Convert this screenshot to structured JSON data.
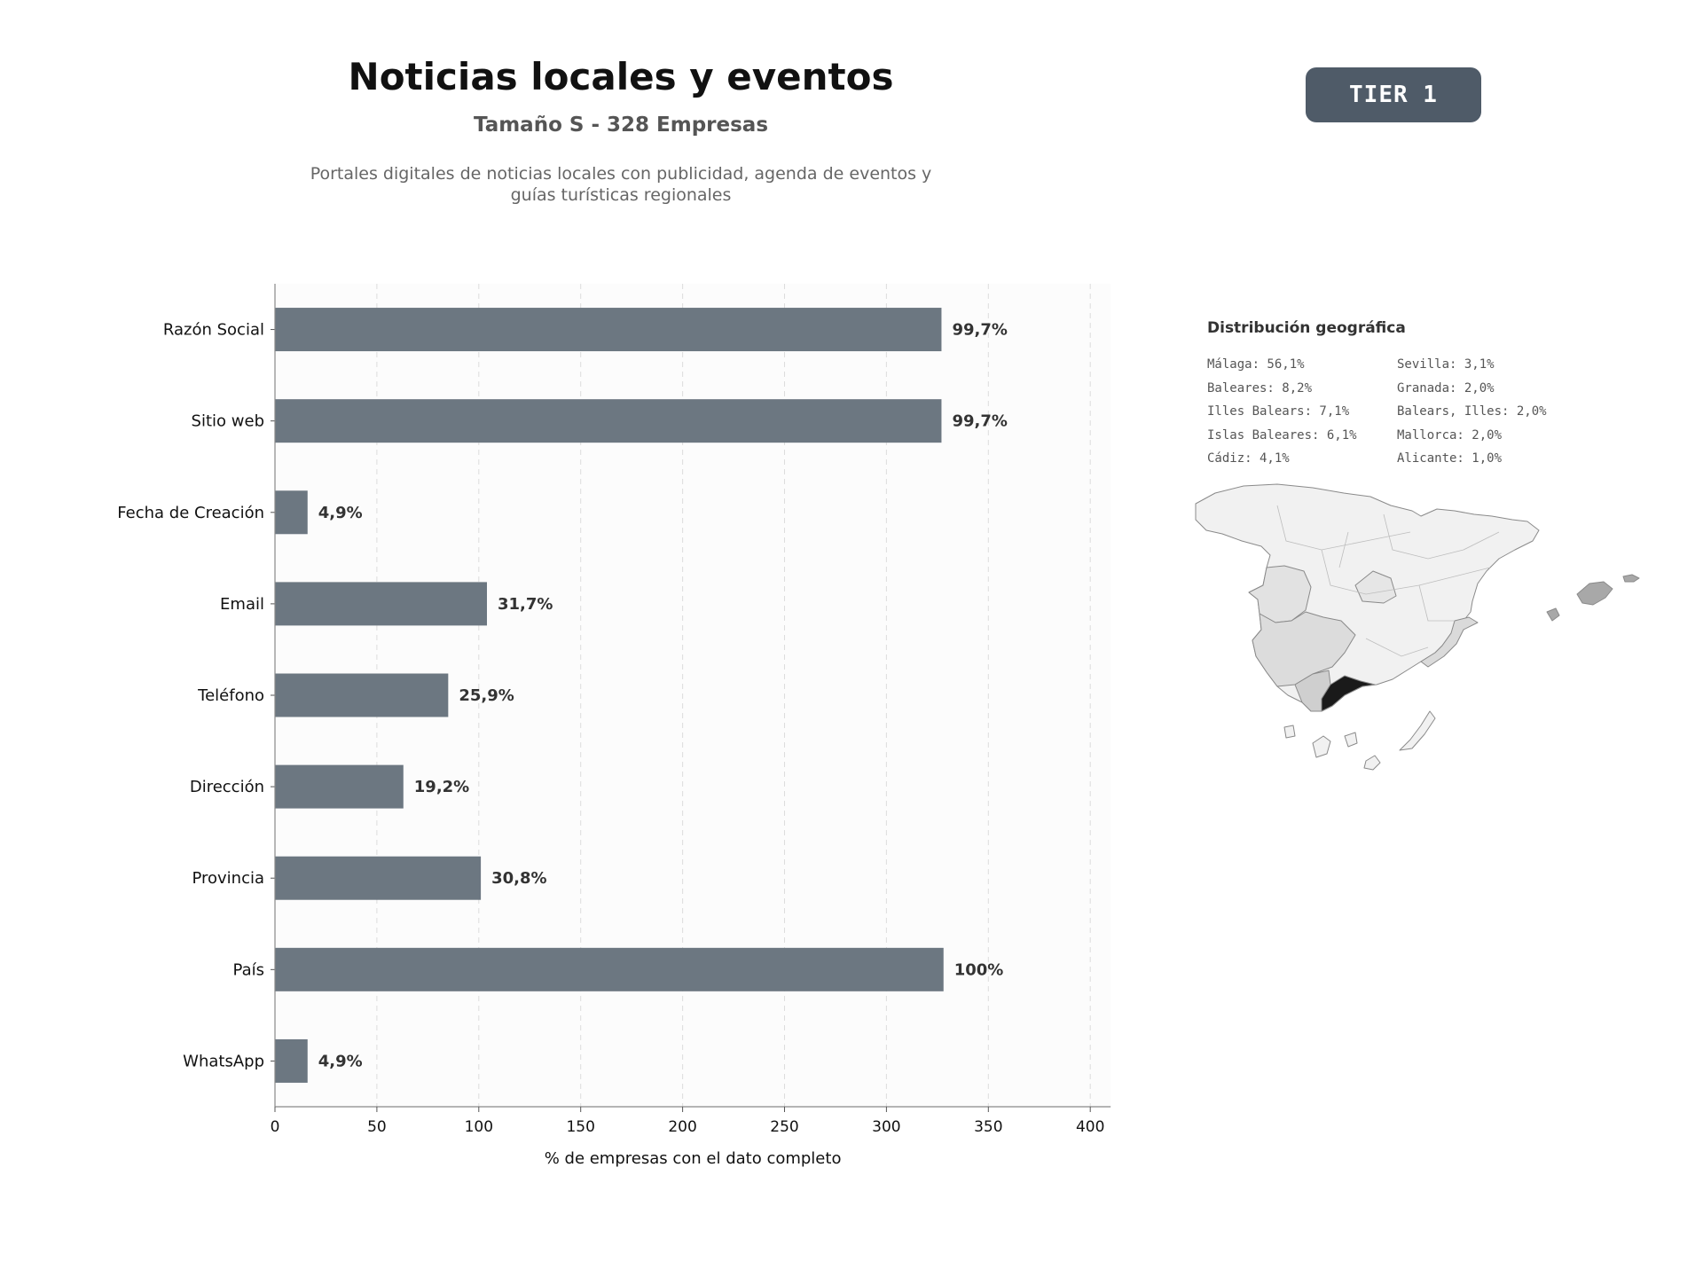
{
  "header": {
    "title": "Noticias locales y eventos",
    "subtitle": "Tamaño S - 328 Empresas",
    "description": "Portales digitales de noticias locales con publicidad, agenda de eventos y guías turísticas regionales",
    "badge": "TIER 1"
  },
  "chart_data": {
    "type": "bar",
    "orientation": "horizontal",
    "categories": [
      "Razón Social",
      "Sitio web",
      "Fecha de Creación",
      "Email",
      "Teléfono",
      "Dirección",
      "Provincia",
      "País",
      "WhatsApp"
    ],
    "values": [
      327,
      327,
      16,
      104,
      85,
      63,
      101,
      328,
      16
    ],
    "data_labels": [
      "99,7%",
      "99,7%",
      "4,9%",
      "31,7%",
      "25,9%",
      "19,2%",
      "30,8%",
      "100%",
      "4,9%"
    ],
    "xlabel": "% de empresas con el dato completo",
    "xlim": [
      0,
      410
    ],
    "xticks": [
      0,
      50,
      100,
      150,
      200,
      250,
      300,
      350,
      400
    ],
    "grid": "vertical-dashed",
    "bar_color": "#6c7781"
  },
  "geo": {
    "title": "Distribución geográfica",
    "column_1": [
      "Málaga: 56,1%",
      "Baleares: 8,2%",
      "Illes Balears: 7,1%",
      "Islas Baleares: 6,1%",
      "Cádiz: 4,1%"
    ],
    "column_2": [
      "Sevilla: 3,1%",
      "Granada: 2,0%",
      "Balears, Illes: 2,0%",
      "Mallorca: 2,0%",
      "Alicante: 1,0%"
    ],
    "highlight_region": "Málaga",
    "highlight_color": "#1a1a1a"
  }
}
